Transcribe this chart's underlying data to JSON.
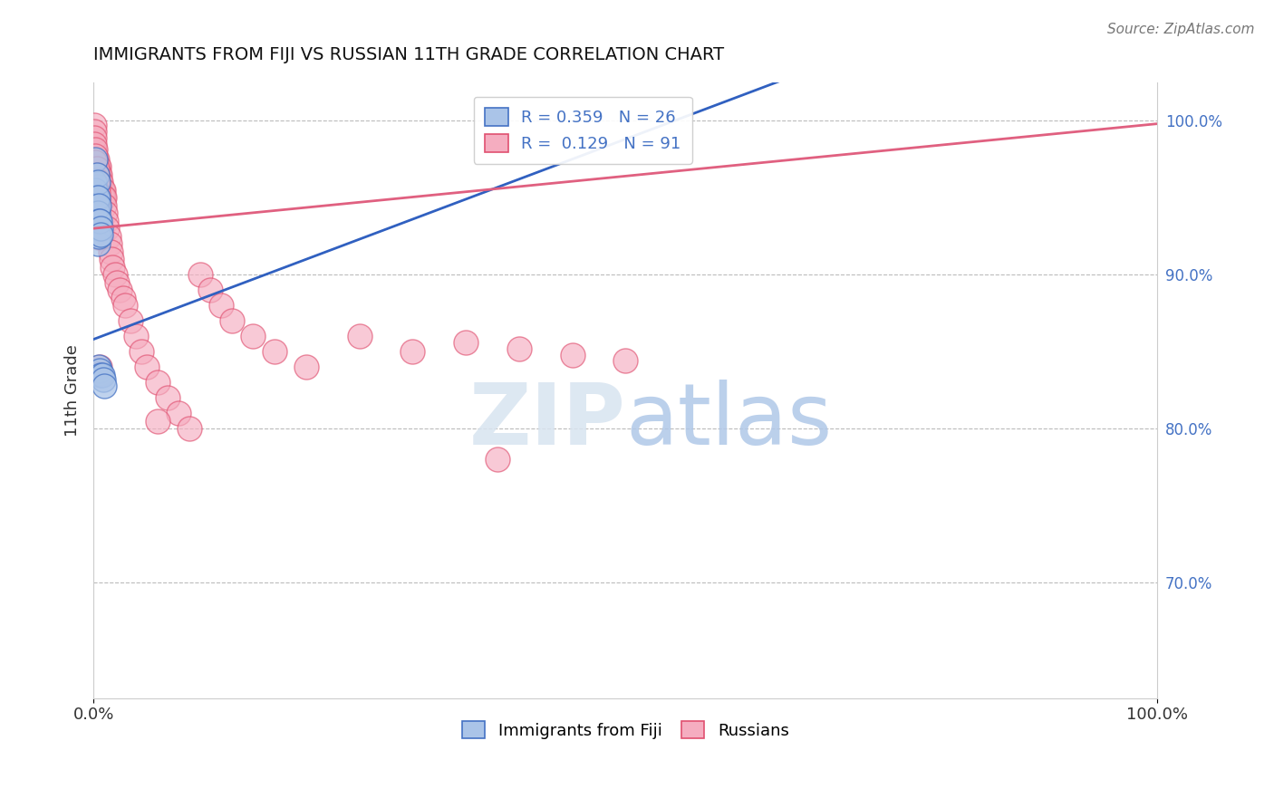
{
  "title": "IMMIGRANTS FROM FIJI VS RUSSIAN 11TH GRADE CORRELATION CHART",
  "source": "Source: ZipAtlas.com",
  "ylabel": "11th Grade",
  "legend_fiji": "Immigrants from Fiji",
  "legend_russian": "Russians",
  "fiji_R": 0.359,
  "fiji_N": 26,
  "russian_R": 0.129,
  "russian_N": 91,
  "fiji_color": "#aac4e8",
  "russian_color": "#f5adc0",
  "fiji_edge_color": "#4472c4",
  "russian_edge_color": "#e05070",
  "fiji_line_color": "#3060c0",
  "russian_line_color": "#e06080",
  "xlim": [
    0.0,
    1.0
  ],
  "ylim": [
    0.625,
    1.025
  ],
  "right_yticks": [
    0.7,
    0.8,
    0.9,
    1.0
  ],
  "right_ytick_labels": [
    "70.0%",
    "80.0%",
    "90.0%",
    "100.0%"
  ],
  "fiji_line_x0": 0.0,
  "fiji_line_y0": 0.858,
  "fiji_line_x1": 0.45,
  "fiji_line_y1": 0.975,
  "russian_line_x0": 0.0,
  "russian_line_y0": 0.93,
  "russian_line_x1": 1.0,
  "russian_line_y1": 0.998,
  "fiji_scatter_x": [
    0.001,
    0.001,
    0.002,
    0.002,
    0.002,
    0.003,
    0.003,
    0.003,
    0.003,
    0.004,
    0.004,
    0.004,
    0.004,
    0.004,
    0.005,
    0.005,
    0.005,
    0.005,
    0.006,
    0.006,
    0.007,
    0.007,
    0.007,
    0.008,
    0.009,
    0.01
  ],
  "fiji_scatter_y": [
    0.96,
    0.94,
    0.975,
    0.955,
    0.935,
    0.965,
    0.95,
    0.945,
    0.93,
    0.96,
    0.95,
    0.94,
    0.93,
    0.92,
    0.945,
    0.935,
    0.925,
    0.84,
    0.935,
    0.838,
    0.93,
    0.926,
    0.835,
    0.835,
    0.832,
    0.828
  ],
  "russian_scatter_x": [
    0.001,
    0.001,
    0.001,
    0.002,
    0.002,
    0.002,
    0.002,
    0.003,
    0.003,
    0.003,
    0.003,
    0.003,
    0.003,
    0.004,
    0.004,
    0.004,
    0.004,
    0.004,
    0.004,
    0.004,
    0.004,
    0.005,
    0.005,
    0.005,
    0.005,
    0.005,
    0.006,
    0.006,
    0.006,
    0.007,
    0.007,
    0.007,
    0.008,
    0.008,
    0.009,
    0.009,
    0.01,
    0.01,
    0.011,
    0.012,
    0.013,
    0.014,
    0.015,
    0.016,
    0.017,
    0.018,
    0.02,
    0.022,
    0.025,
    0.028,
    0.03,
    0.035,
    0.04,
    0.045,
    0.05,
    0.06,
    0.07,
    0.08,
    0.09,
    0.1,
    0.11,
    0.12,
    0.13,
    0.15,
    0.17,
    0.2,
    0.25,
    0.3,
    0.35,
    0.4,
    0.45,
    0.5,
    0.001,
    0.001,
    0.001,
    0.001,
    0.002,
    0.002,
    0.002,
    0.003,
    0.003,
    0.003,
    0.004,
    0.004,
    0.004,
    0.005,
    0.005,
    0.006,
    0.007,
    0.06,
    0.38
  ],
  "russian_scatter_y": [
    0.98,
    0.975,
    0.97,
    0.975,
    0.97,
    0.965,
    0.96,
    0.975,
    0.97,
    0.965,
    0.96,
    0.955,
    0.95,
    0.97,
    0.965,
    0.96,
    0.955,
    0.95,
    0.945,
    0.94,
    0.935,
    0.97,
    0.965,
    0.96,
    0.955,
    0.95,
    0.965,
    0.96,
    0.955,
    0.96,
    0.955,
    0.95,
    0.955,
    0.95,
    0.955,
    0.95,
    0.95,
    0.945,
    0.94,
    0.935,
    0.93,
    0.925,
    0.92,
    0.915,
    0.91,
    0.905,
    0.9,
    0.895,
    0.89,
    0.885,
    0.88,
    0.87,
    0.86,
    0.85,
    0.84,
    0.83,
    0.82,
    0.81,
    0.8,
    0.9,
    0.89,
    0.88,
    0.87,
    0.86,
    0.85,
    0.84,
    0.86,
    0.85,
    0.856,
    0.852,
    0.848,
    0.844,
    0.997,
    0.993,
    0.989,
    0.985,
    0.981,
    0.977,
    0.973,
    0.969,
    0.965,
    0.961,
    0.957,
    0.953,
    0.949,
    0.93,
    0.924,
    0.84,
    0.836,
    0.805,
    0.78
  ]
}
